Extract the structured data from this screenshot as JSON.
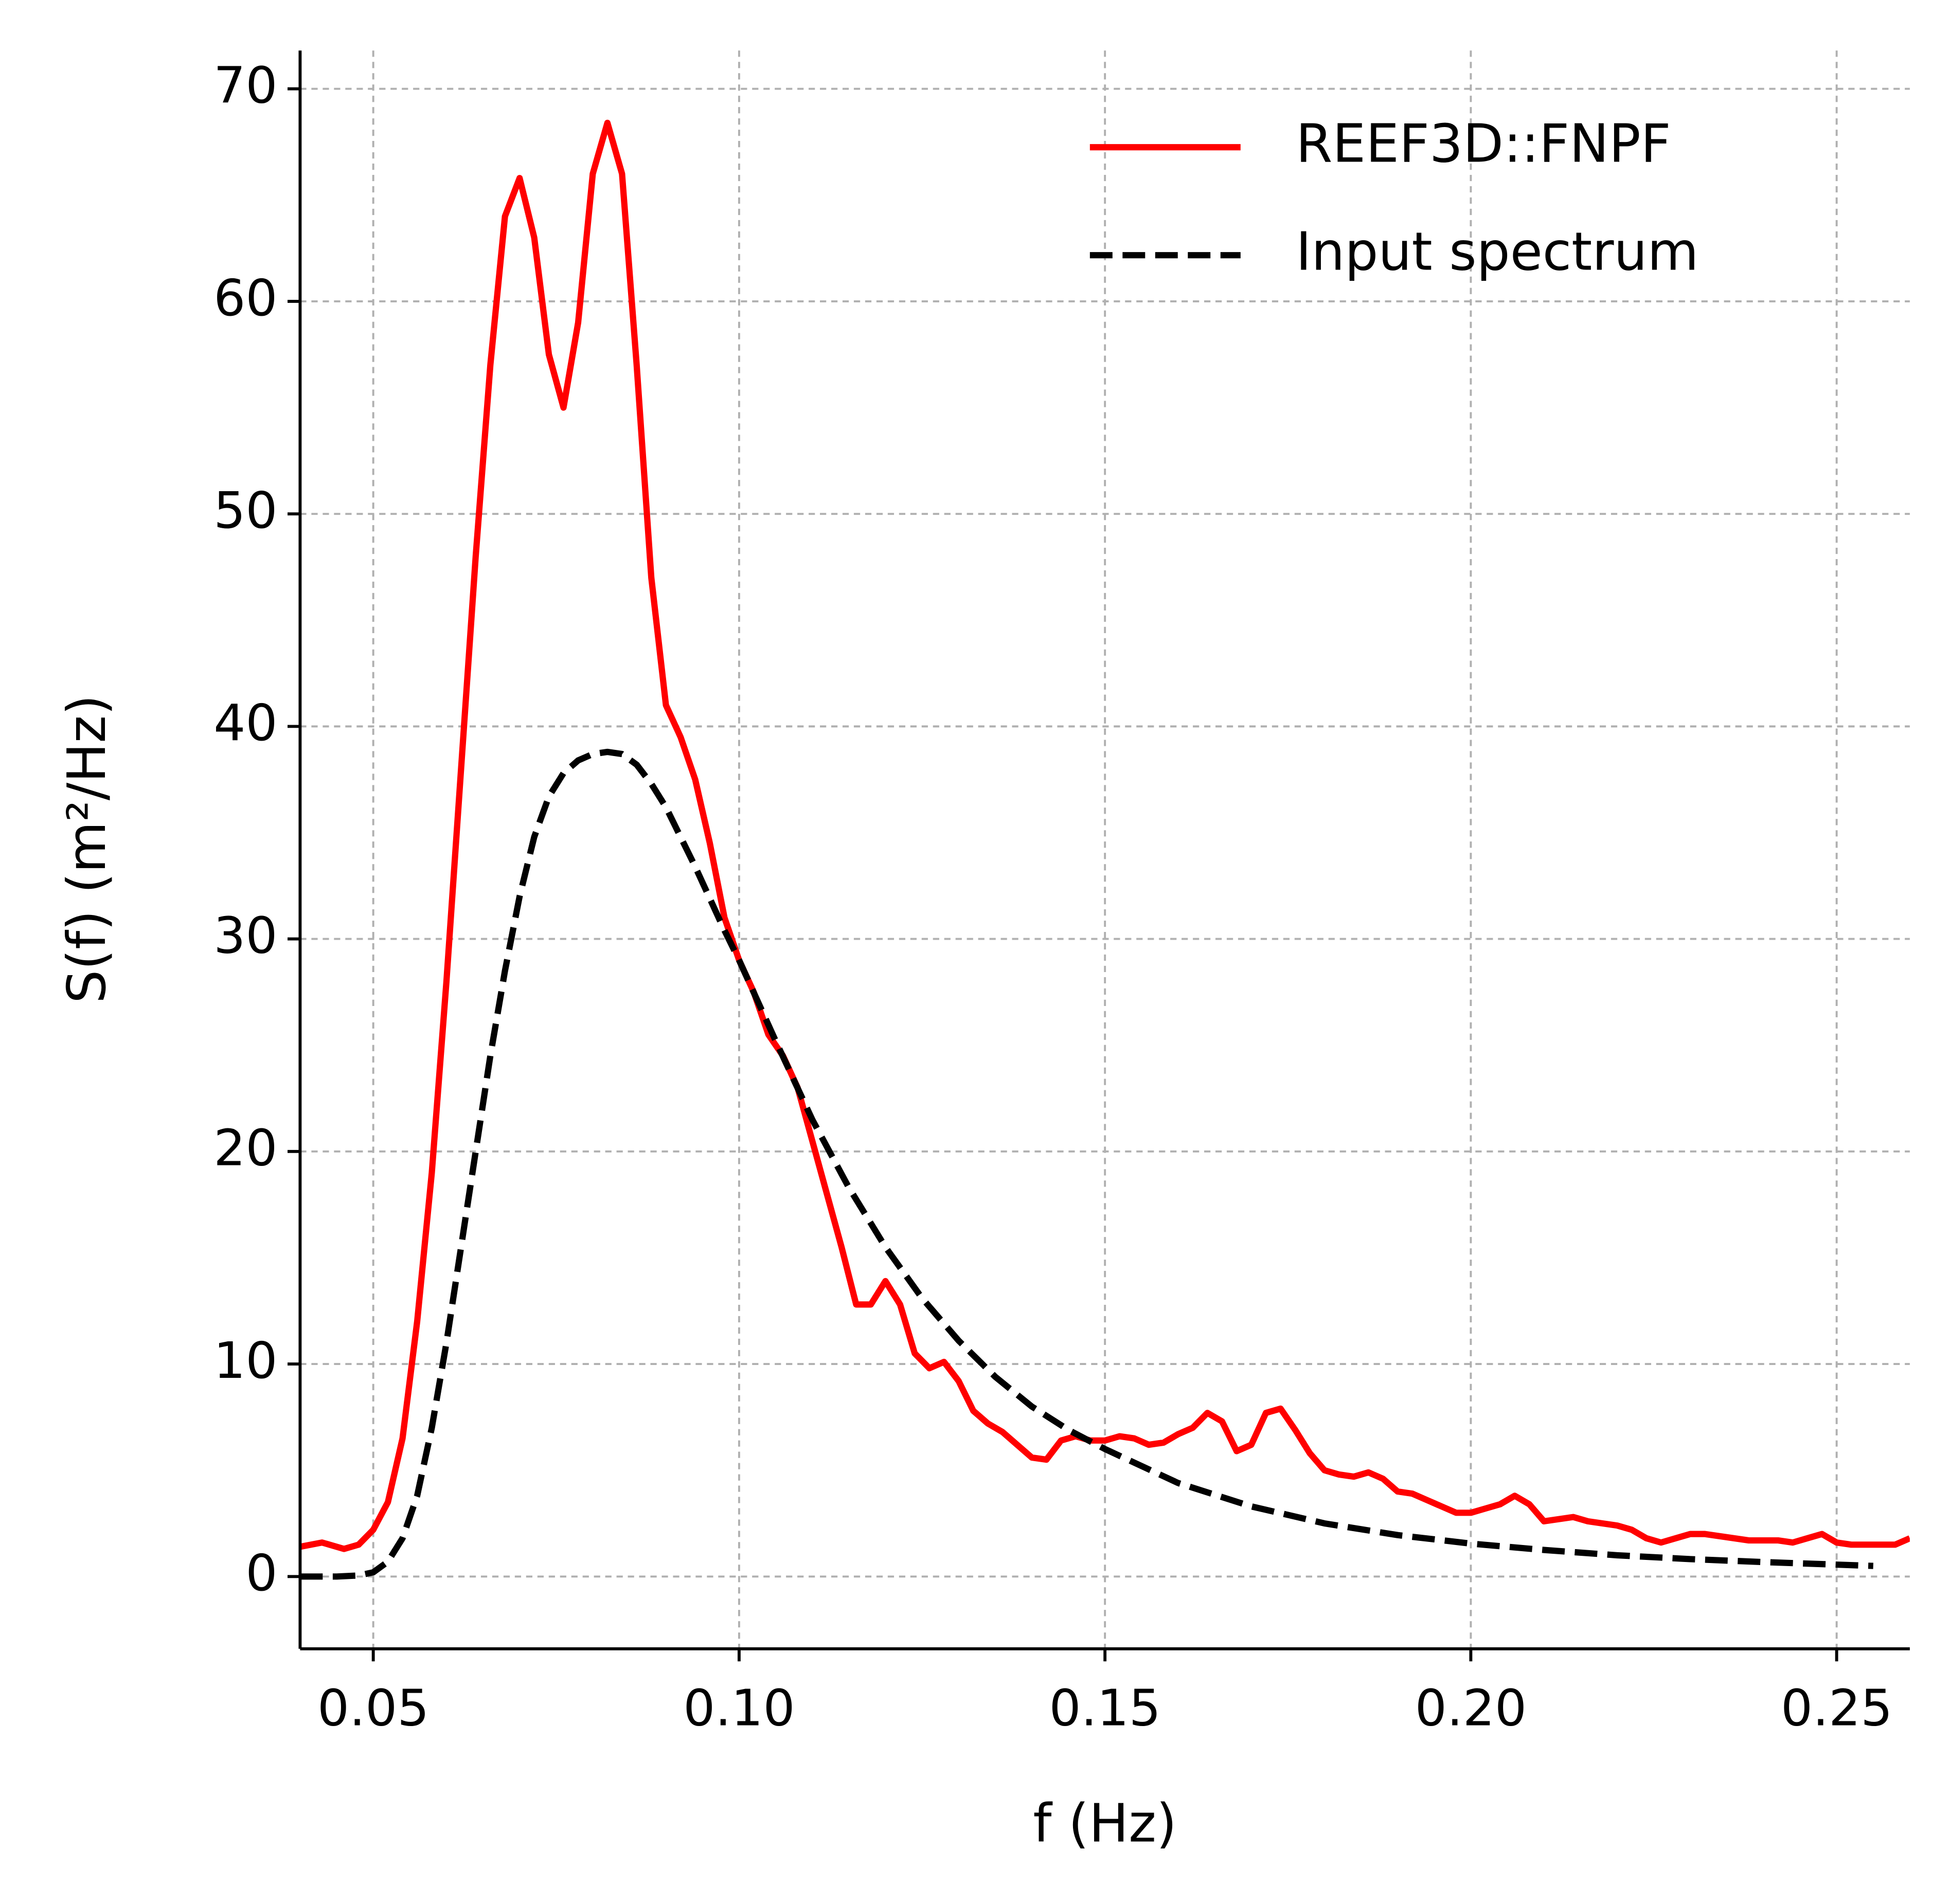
{
  "chart_data": {
    "type": "line",
    "xlabel": "f (Hz)",
    "ylabel": "S(f) (m²/Hz)",
    "xlim": [
      0.04,
      0.26
    ],
    "ylim": [
      -3.4,
      71.8
    ],
    "xticks": [
      {
        "value": 0.05,
        "label": "0.05"
      },
      {
        "value": 0.1,
        "label": "0.10"
      },
      {
        "value": 0.15,
        "label": "0.15"
      },
      {
        "value": 0.2,
        "label": "0.20"
      },
      {
        "value": 0.25,
        "label": "0.25"
      }
    ],
    "yticks": [
      0,
      10,
      20,
      30,
      40,
      50,
      60,
      70
    ],
    "grid": true,
    "legend": "upper right",
    "series": [
      {
        "name": "REEF3D::FNPF",
        "color": "#ff0000",
        "dash": "solid",
        "x": [
          0.04,
          0.043,
          0.046,
          0.048,
          0.05,
          0.052,
          0.054,
          0.056,
          0.058,
          0.06,
          0.062,
          0.064,
          0.066,
          0.068,
          0.07,
          0.072,
          0.074,
          0.076,
          0.078,
          0.08,
          0.082,
          0.084,
          0.086,
          0.088,
          0.09,
          0.092,
          0.094,
          0.096,
          0.098,
          0.1,
          0.102,
          0.104,
          0.106,
          0.108,
          0.11,
          0.112,
          0.114,
          0.116,
          0.118,
          0.12,
          0.122,
          0.124,
          0.126,
          0.128,
          0.13,
          0.132,
          0.134,
          0.136,
          0.138,
          0.14,
          0.142,
          0.144,
          0.146,
          0.148,
          0.15,
          0.152,
          0.154,
          0.156,
          0.158,
          0.16,
          0.162,
          0.164,
          0.166,
          0.168,
          0.17,
          0.172,
          0.174,
          0.176,
          0.178,
          0.18,
          0.182,
          0.184,
          0.186,
          0.188,
          0.19,
          0.192,
          0.194,
          0.196,
          0.198,
          0.2,
          0.202,
          0.204,
          0.206,
          0.208,
          0.21,
          0.212,
          0.214,
          0.216,
          0.218,
          0.22,
          0.222,
          0.224,
          0.226,
          0.228,
          0.23,
          0.232,
          0.234,
          0.236,
          0.238,
          0.24,
          0.242,
          0.244,
          0.246,
          0.248,
          0.25,
          0.252,
          0.254,
          0.256,
          0.258,
          0.26
        ],
        "values": [
          1.4,
          1.6,
          1.3,
          1.5,
          2.2,
          3.5,
          6.5,
          12,
          19,
          28,
          38,
          48,
          57,
          64,
          65.8,
          63,
          57.5,
          55,
          59,
          66,
          68.4,
          66,
          57,
          47,
          41,
          39.5,
          37.5,
          34.5,
          31,
          29,
          27.5,
          25.5,
          24.5,
          23,
          20.5,
          18,
          15.5,
          12.8,
          12.8,
          13.9,
          12.8,
          10.5,
          9.8,
          10.1,
          9.2,
          7.8,
          7.2,
          6.8,
          6.2,
          5.6,
          5.5,
          6.4,
          6.6,
          6.4,
          6.4,
          6.6,
          6.5,
          6.2,
          6.3,
          6.7,
          7.0,
          7.7,
          7.3,
          5.9,
          6.2,
          7.7,
          7.9,
          6.9,
          5.8,
          5.0,
          4.8,
          4.7,
          4.9,
          4.6,
          4.0,
          3.9,
          3.6,
          3.3,
          3.0,
          3.0,
          3.2,
          3.4,
          3.8,
          3.4,
          2.6,
          2.7,
          2.8,
          2.6,
          2.5,
          2.4,
          2.2,
          1.8,
          1.6,
          1.8,
          2.0,
          2.0,
          1.9,
          1.8,
          1.7,
          1.7,
          1.7,
          1.6,
          1.8,
          2.0,
          1.6,
          1.5,
          1.5,
          1.5,
          1.5,
          1.8
        ]
      },
      {
        "name": "Input spectrum",
        "color": "#000000",
        "dash": "dashed",
        "x": [
          0.04,
          0.045,
          0.048,
          0.05,
          0.052,
          0.054,
          0.056,
          0.058,
          0.06,
          0.062,
          0.064,
          0.066,
          0.068,
          0.07,
          0.072,
          0.074,
          0.076,
          0.078,
          0.08,
          0.082,
          0.084,
          0.086,
          0.088,
          0.09,
          0.092,
          0.094,
          0.096,
          0.098,
          0.1,
          0.105,
          0.11,
          0.115,
          0.12,
          0.125,
          0.13,
          0.135,
          0.14,
          0.145,
          0.15,
          0.16,
          0.17,
          0.18,
          0.19,
          0.2,
          0.21,
          0.22,
          0.23,
          0.24,
          0.255
        ],
        "values": [
          0,
          0,
          0.05,
          0.2,
          0.7,
          1.8,
          3.8,
          7,
          11,
          15.5,
          20,
          24.5,
          28.5,
          32,
          34.8,
          36.7,
          37.8,
          38.4,
          38.7,
          38.8,
          38.7,
          38.2,
          37.3,
          36.2,
          34.8,
          33.4,
          31.9,
          30.4,
          29,
          25.2,
          21.5,
          18.3,
          15.5,
          13.1,
          11.1,
          9.4,
          8.0,
          6.9,
          6.0,
          4.4,
          3.3,
          2.5,
          1.95,
          1.55,
          1.25,
          1.0,
          0.82,
          0.68,
          0.5
        ]
      }
    ]
  }
}
